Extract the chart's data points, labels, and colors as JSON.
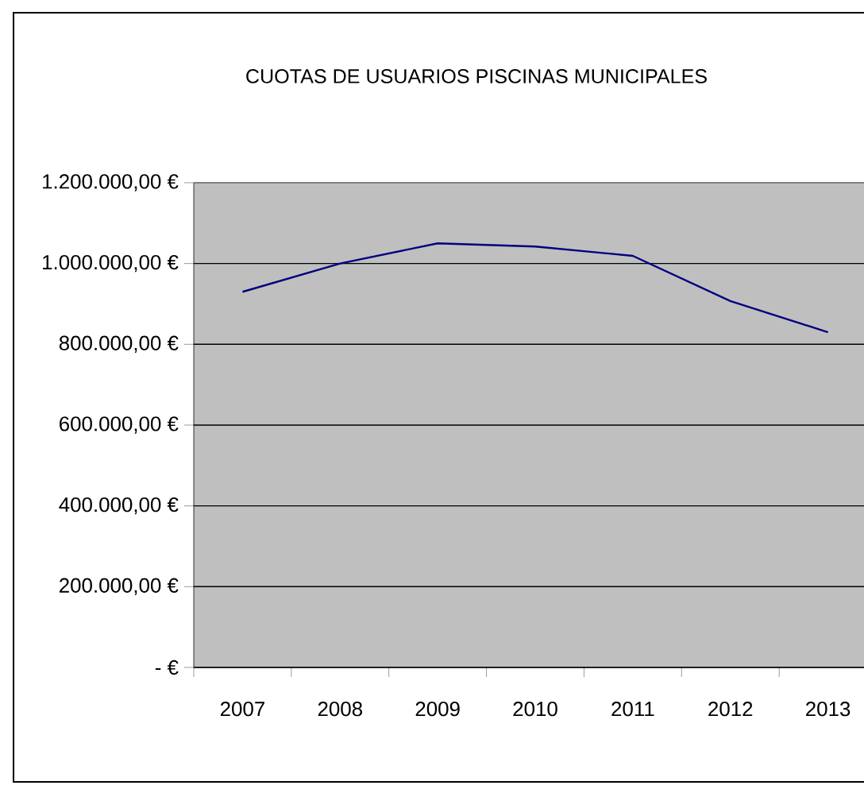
{
  "chart_data": {
    "type": "line",
    "title": "CUOTAS DE USUARIOS PISCINAS MUNICIPALES",
    "categories": [
      "2007",
      "2008",
      "2009",
      "2010",
      "2011",
      "2012",
      "2013"
    ],
    "series": [
      {
        "color": "#000080",
        "values": [
          930000,
          1000000,
          1050000,
          1042000,
          1019000,
          907000,
          830000
        ]
      }
    ],
    "ylim": [
      0,
      1200000
    ],
    "yticks": [
      {
        "value": 0,
        "label": "-   €"
      },
      {
        "value": 200000,
        "label": "200.000,00 €"
      },
      {
        "value": 400000,
        "label": "400.000,00 €"
      },
      {
        "value": 600000,
        "label": "600.000,00 €"
      },
      {
        "value": 800000,
        "label": "800.000,00 €"
      },
      {
        "value": 1000000,
        "label": "1.000.000,00 €"
      },
      {
        "value": 1200000,
        "label": "1.200.000,00 €"
      }
    ],
    "grid": "y",
    "marker": "none",
    "line_style": "solid"
  }
}
